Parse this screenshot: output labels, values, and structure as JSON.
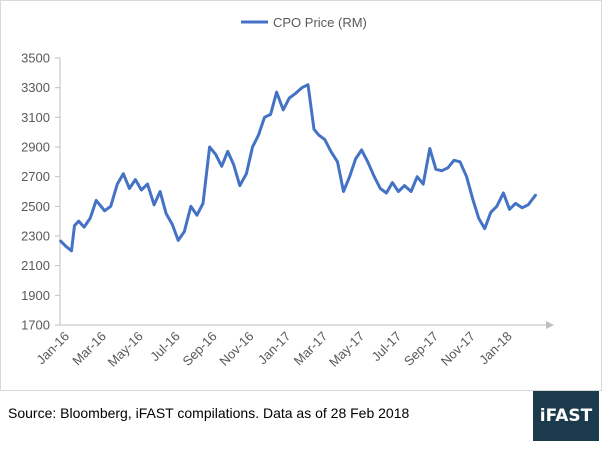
{
  "chart_data": {
    "type": "line",
    "title": "",
    "xlabel": "",
    "ylabel": "",
    "ylim": [
      1700,
      3500
    ],
    "y_ticks": [
      1700,
      1900,
      2100,
      2300,
      2500,
      2700,
      2900,
      3100,
      3300,
      3500
    ],
    "x_tick_labels": [
      "Jan-16",
      "Mar-16",
      "May-16",
      "Jul-16",
      "Sep-16",
      "Nov-16",
      "Jan-17",
      "Mar-17",
      "May-17",
      "Jul-17",
      "Sep-17",
      "Nov-17",
      "Jan-18"
    ],
    "x_range": [
      "2016-01-01",
      "2018-02-28"
    ],
    "grid": false,
    "legend": "top-center",
    "series": [
      {
        "name": "CPO Price (RM)",
        "color": "#4472c4",
        "x": [
          "2016-01-01",
          "2016-01-11",
          "2016-01-20",
          "2016-01-25",
          "2016-02-01",
          "2016-02-10",
          "2016-02-20",
          "2016-03-01",
          "2016-03-15",
          "2016-03-25",
          "2016-04-05",
          "2016-04-15",
          "2016-04-25",
          "2016-05-05",
          "2016-05-15",
          "2016-05-25",
          "2016-06-05",
          "2016-06-15",
          "2016-06-25",
          "2016-07-05",
          "2016-07-15",
          "2016-07-25",
          "2016-08-05",
          "2016-08-15",
          "2016-08-25",
          "2016-09-05",
          "2016-09-15",
          "2016-09-25",
          "2016-10-05",
          "2016-10-15",
          "2016-10-25",
          "2016-11-05",
          "2016-11-15",
          "2016-11-25",
          "2016-12-05",
          "2016-12-15",
          "2016-12-25",
          "2017-01-05",
          "2017-01-15",
          "2017-01-25",
          "2017-02-05",
          "2017-02-15",
          "2017-02-25",
          "2017-03-05",
          "2017-03-15",
          "2017-03-25",
          "2017-04-05",
          "2017-04-15",
          "2017-04-25",
          "2017-05-05",
          "2017-05-15",
          "2017-05-25",
          "2017-06-05",
          "2017-06-15",
          "2017-06-25",
          "2017-07-05",
          "2017-07-15",
          "2017-07-25",
          "2017-08-05",
          "2017-08-15",
          "2017-08-25",
          "2017-09-05",
          "2017-09-15",
          "2017-09-25",
          "2017-10-05",
          "2017-10-15",
          "2017-10-25",
          "2017-11-05",
          "2017-11-15",
          "2017-11-25",
          "2017-12-05",
          "2017-12-15",
          "2017-12-25",
          "2018-01-05",
          "2018-01-15",
          "2018-01-25",
          "2018-02-05",
          "2018-02-15",
          "2018-02-28"
        ],
        "values": [
          2270,
          2230,
          2200,
          2370,
          2400,
          2360,
          2420,
          2540,
          2470,
          2500,
          2650,
          2720,
          2620,
          2680,
          2610,
          2650,
          2510,
          2600,
          2450,
          2380,
          2270,
          2330,
          2500,
          2440,
          2520,
          2900,
          2850,
          2770,
          2870,
          2780,
          2640,
          2720,
          2900,
          2980,
          3100,
          3120,
          3270,
          3150,
          3230,
          3260,
          3300,
          3320,
          3020,
          2980,
          2950,
          2870,
          2800,
          2600,
          2700,
          2820,
          2880,
          2800,
          2700,
          2620,
          2590,
          2660,
          2600,
          2640,
          2600,
          2700,
          2650,
          2890,
          2750,
          2740,
          2760,
          2810,
          2800,
          2700,
          2550,
          2420,
          2350,
          2460,
          2500,
          2590,
          2480,
          2520,
          2490,
          2510,
          2580
        ]
      }
    ]
  },
  "footer": {
    "source": "Source: Bloomberg, iFAST compilations. Data as of 28 Feb 2018",
    "logo_text": "iFAST",
    "logo_color": "#1b3a4b"
  }
}
